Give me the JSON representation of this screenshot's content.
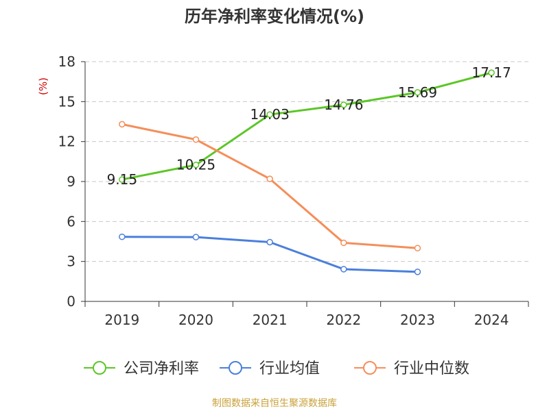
{
  "chart_data": {
    "type": "line",
    "title": "历年净利率变化情况(%)",
    "ylabel": "(%)",
    "xlabel": "",
    "categories": [
      "2019",
      "2020",
      "2021",
      "2022",
      "2023",
      "2024"
    ],
    "ylim": [
      0,
      18
    ],
    "yticks": [
      0,
      3,
      6,
      9,
      12,
      15,
      18
    ],
    "grid": true,
    "legend_position": "bottom",
    "series": [
      {
        "name": "公司净利率",
        "color": "#5cc627",
        "values": [
          9.15,
          10.25,
          14.03,
          14.76,
          15.69,
          17.17
        ],
        "labels": [
          "9.15",
          "10.25",
          "14.03",
          "14.76",
          "15.69",
          "17.17"
        ]
      },
      {
        "name": "行业均值",
        "color": "#4a7fdc",
        "values": [
          4.85,
          4.83,
          4.45,
          2.42,
          2.22,
          null
        ]
      },
      {
        "name": "行业中位数",
        "color": "#f58e5a",
        "values": [
          13.3,
          12.15,
          9.2,
          4.4,
          4.0,
          null
        ]
      }
    ]
  },
  "source": "制图数据来自恒生聚源数据库"
}
